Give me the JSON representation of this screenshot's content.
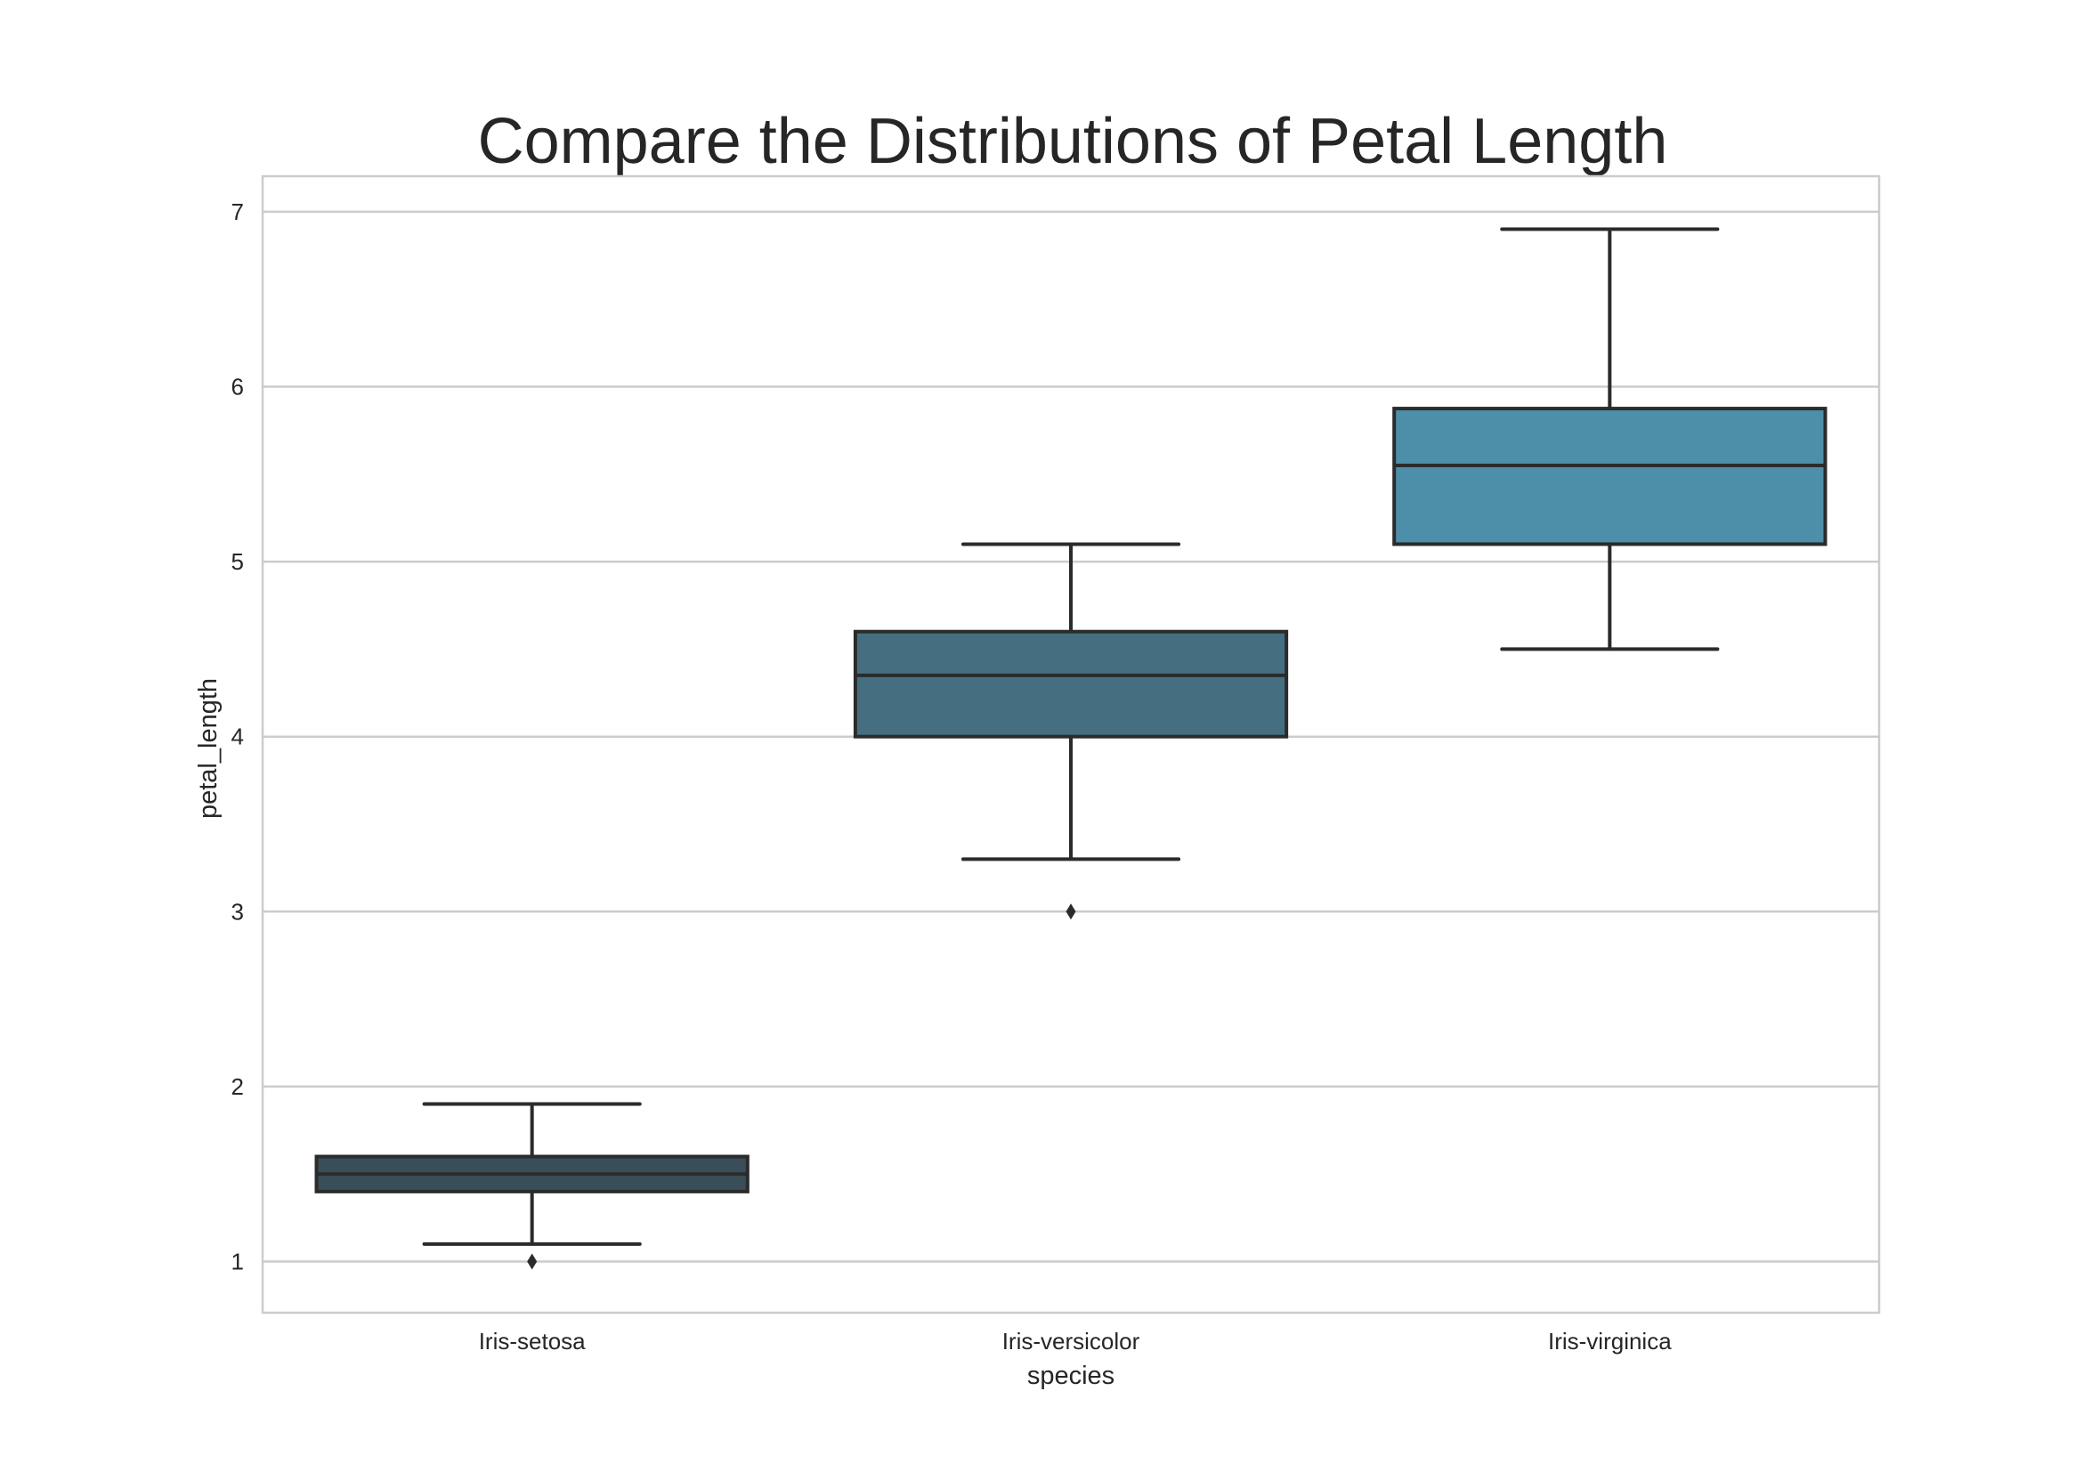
{
  "chart_data": {
    "type": "box",
    "title": "Compare the Distributions of Petal Length",
    "xlabel": "species",
    "ylabel": "petal_length",
    "ylim": [
      0.71,
      7.2
    ],
    "yticks": [
      1,
      2,
      3,
      4,
      5,
      6,
      7
    ],
    "grid": "horizontal",
    "categories": [
      "Iris-setosa",
      "Iris-versicolor",
      "Iris-virginica"
    ],
    "boxes": [
      {
        "category": "Iris-setosa",
        "whisker_low": 1.1,
        "q1": 1.4,
        "median": 1.5,
        "q3": 1.6,
        "whisker_high": 1.9,
        "outliers": [
          1.0
        ],
        "color": "#3a4e59"
      },
      {
        "category": "Iris-versicolor",
        "whisker_low": 3.3,
        "q1": 4.0,
        "median": 4.35,
        "q3": 4.6,
        "whisker_high": 5.1,
        "outliers": [
          3.0
        ],
        "color": "#456f80"
      },
      {
        "category": "Iris-virginica",
        "whisker_low": 4.5,
        "q1": 5.1,
        "median": 5.55,
        "q3": 5.875,
        "whisker_high": 6.9,
        "outliers": [],
        "color": "#4d8fa8"
      }
    ]
  }
}
